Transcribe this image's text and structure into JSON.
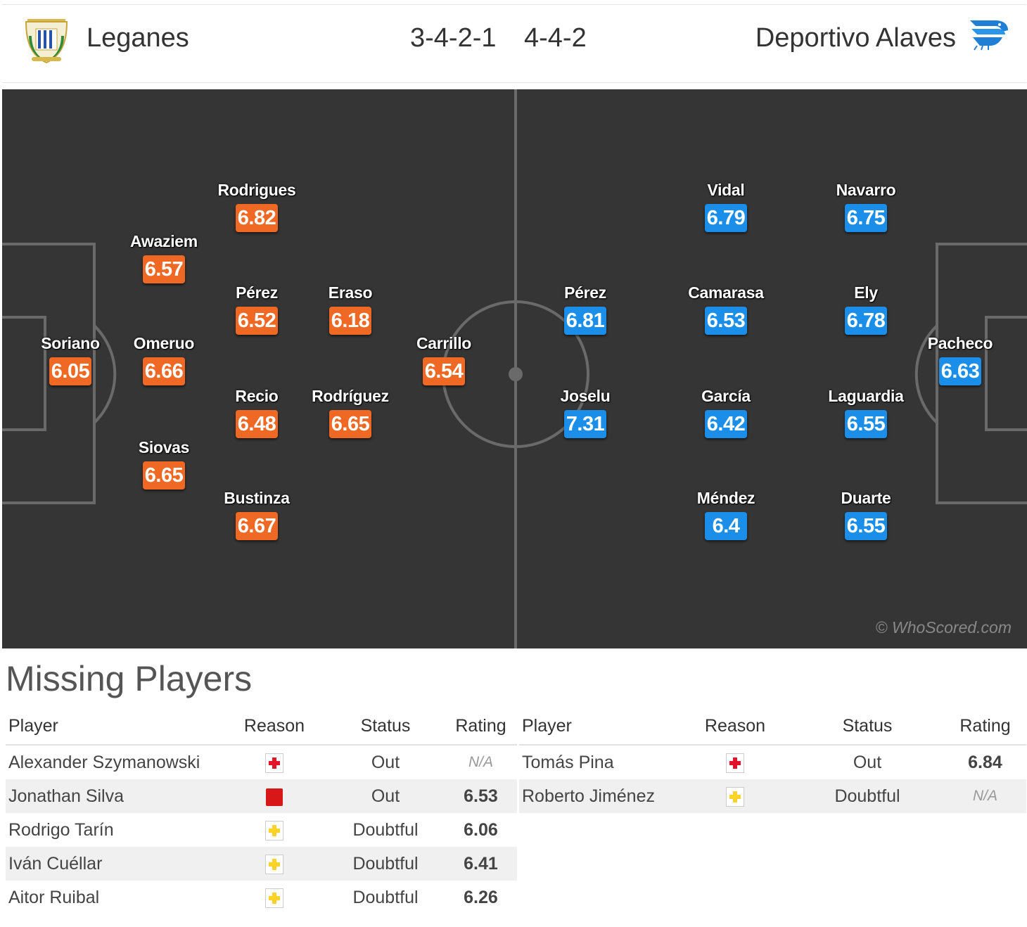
{
  "header": {
    "home_team": "Leganes",
    "home_formation": "3-4-2-1",
    "away_formation": "4-4-2",
    "away_team": "Deportivo Alaves"
  },
  "pitch": {
    "watermark": "© WhoScored.com",
    "home_players": [
      {
        "name": "Soriano",
        "rating": "6.05"
      },
      {
        "name": "Awaziem",
        "rating": "6.57"
      },
      {
        "name": "Omeruo",
        "rating": "6.66"
      },
      {
        "name": "Siovas",
        "rating": "6.65"
      },
      {
        "name": "Rodrigues",
        "rating": "6.82"
      },
      {
        "name": "Pérez",
        "rating": "6.52"
      },
      {
        "name": "Recio",
        "rating": "6.48"
      },
      {
        "name": "Bustinza",
        "rating": "6.67"
      },
      {
        "name": "Eraso",
        "rating": "6.18"
      },
      {
        "name": "Rodríguez",
        "rating": "6.65"
      },
      {
        "name": "Carrillo",
        "rating": "6.54"
      }
    ],
    "away_players": [
      {
        "name": "Pérez",
        "rating": "6.81"
      },
      {
        "name": "Joselu",
        "rating": "7.31"
      },
      {
        "name": "Vidal",
        "rating": "6.79"
      },
      {
        "name": "Camarasa",
        "rating": "6.53"
      },
      {
        "name": "García",
        "rating": "6.42"
      },
      {
        "name": "Méndez",
        "rating": "6.4"
      },
      {
        "name": "Navarro",
        "rating": "6.75"
      },
      {
        "name": "Ely",
        "rating": "6.78"
      },
      {
        "name": "Laguardia",
        "rating": "6.55"
      },
      {
        "name": "Duarte",
        "rating": "6.55"
      },
      {
        "name": "Pacheco",
        "rating": "6.63"
      }
    ]
  },
  "missing": {
    "title": "Missing Players",
    "columns": {
      "player": "Player",
      "reason": "Reason",
      "status": "Status",
      "rating": "Rating"
    },
    "home": [
      {
        "player": "Alexander Szymanowski",
        "reason_icon": "injury-icon",
        "status": "Out",
        "rating": "N/A"
      },
      {
        "player": "Jonathan Silva",
        "reason_icon": "red-card-icon",
        "status": "Out",
        "rating": "6.53"
      },
      {
        "player": "Rodrigo Tarín",
        "reason_icon": "doubtful-icon",
        "status": "Doubtful",
        "rating": "6.06"
      },
      {
        "player": "Iván Cuéllar",
        "reason_icon": "doubtful-icon",
        "status": "Doubtful",
        "rating": "6.41"
      },
      {
        "player": "Aitor Ruibal",
        "reason_icon": "doubtful-icon",
        "status": "Doubtful",
        "rating": "6.26"
      }
    ],
    "away": [
      {
        "player": "Tomás Pina",
        "reason_icon": "injury-icon",
        "status": "Out",
        "rating": "6.84"
      },
      {
        "player": "Roberto Jiménez",
        "reason_icon": "doubtful-icon",
        "status": "Doubtful",
        "rating": "N/A"
      }
    ]
  },
  "colors": {
    "home_accent": "#f06924",
    "away_accent": "#1a8ee8",
    "pitch": "#353535"
  }
}
